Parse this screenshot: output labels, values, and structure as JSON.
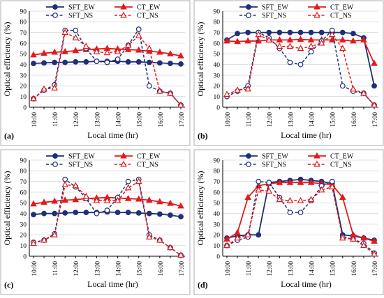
{
  "chart_data": [
    {
      "panel_label": "(a)",
      "type": "line",
      "xlabel": "Local time (hr)",
      "ylabel": "Optical efficiency (%)",
      "ylim": [
        0,
        90
      ],
      "yticks": [
        0,
        10,
        20,
        30,
        40,
        50,
        60,
        70,
        80,
        90
      ],
      "x": [
        "10:00",
        "10:30",
        "11:00",
        "11:30",
        "12:00",
        "12:30",
        "13:00",
        "13:30",
        "14:00",
        "14:30",
        "15:00",
        "15:30",
        "16:00",
        "16:30",
        "17:00"
      ],
      "xtick_labels": [
        "10:00",
        "11:00",
        "12:00",
        "13:00",
        "14:00",
        "15:00",
        "16:00",
        "17:00"
      ],
      "grid": "horizontal",
      "legend": "top",
      "series": [
        {
          "name": "SFT_EW",
          "color": "#1f2f78",
          "dash": false,
          "marker": "circle-filled",
          "values": [
            41,
            41.5,
            42,
            42,
            42.5,
            42.5,
            43,
            43,
            43,
            42.5,
            42.5,
            42,
            41.5,
            41,
            40.5
          ]
        },
        {
          "name": "CT_EW",
          "color": "#e31a1c",
          "dash": false,
          "marker": "triangle-filled",
          "values": [
            49,
            50.5,
            51.5,
            52,
            53,
            54,
            54.5,
            55,
            54.5,
            54,
            53.5,
            52.5,
            51.5,
            50,
            48
          ]
        },
        {
          "name": "SFT_NS",
          "color": "#1f2f78",
          "dash": true,
          "marker": "circle-open",
          "values": [
            8,
            16,
            21,
            72,
            72,
            55,
            43,
            42,
            45,
            58,
            73,
            20,
            15,
            13,
            2
          ]
        },
        {
          "name": "CT_NS",
          "color": "#e31a1c",
          "dash": true,
          "marker": "triangle-open",
          "values": [
            8,
            17,
            18,
            70,
            65,
            57,
            52,
            51,
            52,
            58,
            67,
            55,
            15,
            13,
            2
          ]
        }
      ]
    },
    {
      "panel_label": "(b)",
      "type": "line",
      "xlabel": "Local time (hr)",
      "ylabel": "Optical efficiency (%)",
      "ylim": [
        0,
        90
      ],
      "yticks": [
        0,
        10,
        20,
        30,
        40,
        50,
        60,
        70,
        80,
        90
      ],
      "x": [
        "10:00",
        "10:30",
        "11:00",
        "11:30",
        "12:00",
        "12:30",
        "13:00",
        "13:30",
        "14:00",
        "14:30",
        "15:00",
        "15:30",
        "16:00",
        "16:30",
        "17:00"
      ],
      "xtick_labels": [
        "10:00",
        "11:00",
        "12:00",
        "13:00",
        "14:00",
        "15:00",
        "16:00",
        "17:00"
      ],
      "grid": "horizontal",
      "legend": "top",
      "series": [
        {
          "name": "SFT_EW",
          "color": "#1f2f78",
          "dash": false,
          "marker": "circle-filled",
          "values": [
            63,
            69,
            70,
            70,
            70,
            70,
            70,
            70,
            70,
            70,
            70,
            70,
            69,
            65,
            20
          ]
        },
        {
          "name": "CT_EW",
          "color": "#e31a1c",
          "dash": false,
          "marker": "triangle-filled",
          "values": [
            62,
            61.5,
            62,
            62,
            63,
            63,
            63,
            63.5,
            63,
            63,
            63,
            63,
            62,
            63,
            41
          ]
        },
        {
          "name": "SFT_NS",
          "color": "#1f2f78",
          "dash": true,
          "marker": "circle-open",
          "values": [
            10,
            15,
            20,
            70,
            65,
            55,
            42,
            40,
            52,
            62,
            72,
            20,
            15,
            13,
            2
          ]
        },
        {
          "name": "CT_NS",
          "color": "#e31a1c",
          "dash": true,
          "marker": "triangle-open",
          "values": [
            12,
            16,
            17,
            68,
            63,
            57,
            57,
            55,
            57,
            60,
            68,
            55,
            17,
            13,
            2
          ]
        }
      ]
    },
    {
      "panel_label": "(c)",
      "type": "line",
      "xlabel": "Local time (hr)",
      "ylabel": "Optical efficiency (%)",
      "ylim": [
        0,
        90
      ],
      "yticks": [
        0,
        10,
        20,
        30,
        40,
        50,
        60,
        70,
        80,
        90
      ],
      "x": [
        "10:00",
        "10:30",
        "11:00",
        "11:30",
        "12:00",
        "12:30",
        "13:00",
        "13:30",
        "14:00",
        "14:30",
        "15:00",
        "15:30",
        "16:00",
        "16:30",
        "17:00"
      ],
      "xtick_labels": [
        "10:00",
        "11:00",
        "12:00",
        "13:00",
        "14:00",
        "15:00",
        "16:00",
        "17:00"
      ],
      "grid": "horizontal",
      "legend": "top",
      "series": [
        {
          "name": "SFT_EW",
          "color": "#1f2f78",
          "dash": false,
          "marker": "circle-filled",
          "values": [
            39,
            40,
            40,
            40.5,
            41,
            41,
            41,
            41.5,
            41,
            41,
            40.5,
            40,
            39.5,
            38.5,
            37
          ]
        },
        {
          "name": "CT_EW",
          "color": "#e31a1c",
          "dash": false,
          "marker": "triangle-filled",
          "values": [
            49,
            50.5,
            51.5,
            52.5,
            53,
            54,
            54.5,
            55,
            54.5,
            54,
            53.5,
            52.5,
            51,
            49.5,
            47
          ]
        },
        {
          "name": "SFT_NS",
          "color": "#1f2f78",
          "dash": true,
          "marker": "circle-open",
          "values": [
            13,
            15,
            21,
            72,
            65,
            54,
            40,
            43,
            55,
            70,
            72,
            20,
            15,
            8,
            1
          ]
        },
        {
          "name": "CT_NS",
          "color": "#e31a1c",
          "dash": true,
          "marker": "triangle-open",
          "values": [
            12,
            15,
            20,
            67,
            66,
            56,
            52,
            52,
            52,
            64,
            70,
            18,
            15,
            8,
            1
          ]
        }
      ]
    },
    {
      "panel_label": "(d)",
      "type": "line",
      "xlabel": "Local time (hr)",
      "ylabel": "Optical efficiency (%)",
      "ylim": [
        0,
        90
      ],
      "yticks": [
        0,
        10,
        20,
        30,
        40,
        50,
        60,
        70,
        80,
        90
      ],
      "x": [
        "10:00",
        "10:30",
        "11:00",
        "11:30",
        "12:00",
        "12:30",
        "13:00",
        "13:30",
        "14:00",
        "14:30",
        "15:00",
        "15:30",
        "16:00",
        "16:30",
        "17:00"
      ],
      "xtick_labels": [
        "10:00",
        "11:00",
        "12:00",
        "13:00",
        "14:00",
        "15:00",
        "16:00",
        "17:00"
      ],
      "grid": "horizontal",
      "legend": "top",
      "series": [
        {
          "name": "SFT_EW",
          "color": "#1f2f78",
          "dash": false,
          "marker": "circle-filled",
          "values": [
            17,
            19,
            20,
            20,
            69,
            70,
            71,
            72,
            71,
            70,
            68,
            20,
            19,
            17,
            15
          ]
        },
        {
          "name": "CT_EW",
          "color": "#e31a1c",
          "dash": false,
          "marker": "triangle-filled",
          "values": [
            16,
            22,
            55,
            66,
            68,
            69,
            69,
            69,
            69,
            68,
            67,
            55,
            20,
            17,
            14
          ]
        },
        {
          "name": "SFT_NS",
          "color": "#1f2f78",
          "dash": true,
          "marker": "circle-open",
          "values": [
            10,
            15,
            18,
            70,
            69,
            55,
            41,
            41,
            52,
            66,
            70,
            18,
            16,
            12,
            3
          ]
        },
        {
          "name": "CT_NS",
          "color": "#e31a1c",
          "dash": true,
          "marker": "triangle-open",
          "values": [
            10,
            17,
            20,
            62,
            61,
            53,
            52,
            52,
            53,
            62,
            65,
            17,
            16,
            10,
            2
          ]
        }
      ]
    }
  ]
}
